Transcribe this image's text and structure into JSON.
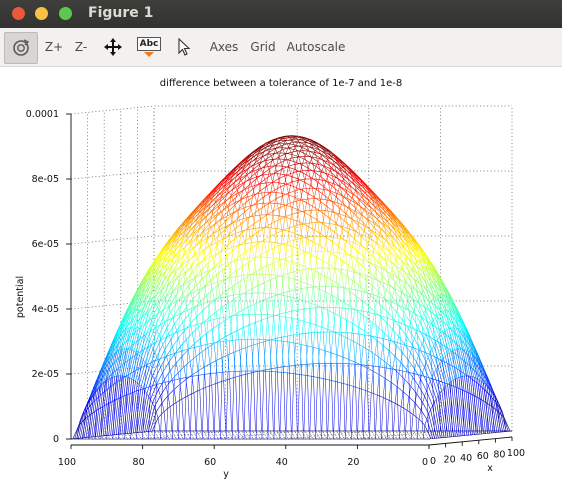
{
  "window": {
    "title": "Figure 1"
  },
  "toolbar": {
    "rotate_icon": "rotate-icon",
    "zoom_in_label": "Z+",
    "zoom_out_label": "Z-",
    "pan_icon": "pan-arrows-icon",
    "insert_text_icon": "insert-text-icon",
    "insert_text_label": "Abc",
    "select_icon": "cursor-arrow-icon",
    "axes_label": "Axes",
    "grid_label": "Grid",
    "autoscale_label": "Autoscale"
  },
  "chart_data": {
    "type": "surface",
    "title": "difference between a tolerance of 1e-7 and 1e-8",
    "xlabel": "x",
    "ylabel": "y",
    "zlabel": "potential",
    "x_ticks": [
      "0",
      "20",
      "40",
      "60",
      "80",
      "100"
    ],
    "y_ticks": [
      "100",
      "80",
      "60",
      "40",
      "20",
      "0"
    ],
    "z_ticks": [
      "0",
      "2e-05",
      "4e-05",
      "6e-05",
      "8e-05",
      "0.0001"
    ],
    "xlim": [
      0,
      100
    ],
    "ylim": [
      0,
      100
    ],
    "zlim": [
      0,
      0.0001
    ],
    "peak": 8.9e-05,
    "grid": true,
    "colormap": "jet"
  }
}
